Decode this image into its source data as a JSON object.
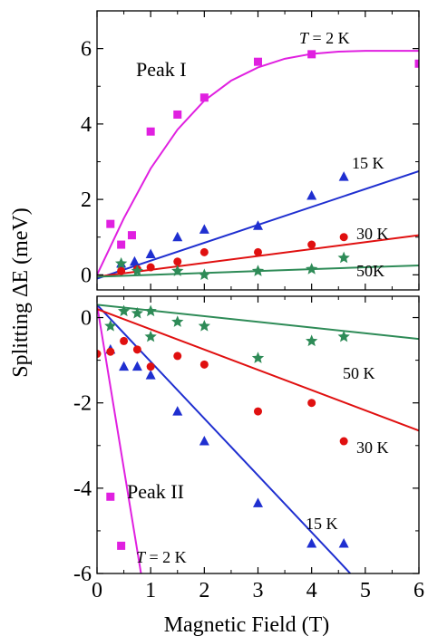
{
  "shared_xlabel": "Magnetic Field (T)",
  "shared_ylabel": "Splitting  ΔE (meV)",
  "chart_data": [
    {
      "type": "scatter",
      "panel": "top",
      "annotation": "Peak I",
      "xlim": [
        0,
        6
      ],
      "ylim": [
        -0.4,
        7
      ],
      "xticks": [
        0,
        1,
        2,
        3,
        4,
        5,
        6
      ],
      "yticks": [
        0,
        2,
        4,
        6
      ],
      "series": [
        {
          "label": "T = 2 K",
          "color": "#e020e0",
          "marker": "square",
          "points": [
            [
              0.25,
              1.35
            ],
            [
              0.45,
              0.8
            ],
            [
              0.65,
              1.05
            ],
            [
              1.0,
              3.8
            ],
            [
              1.5,
              4.25
            ],
            [
              2.0,
              4.7
            ],
            [
              3.0,
              5.65
            ],
            [
              4.0,
              5.85
            ],
            [
              6.0,
              5.6
            ]
          ],
          "fit": [
            [
              0,
              0
            ],
            [
              0.5,
              1.5
            ],
            [
              1,
              2.82
            ],
            [
              1.5,
              3.85
            ],
            [
              2,
              4.62
            ],
            [
              2.5,
              5.15
            ],
            [
              3,
              5.5
            ],
            [
              3.5,
              5.73
            ],
            [
              4,
              5.86
            ],
            [
              4.5,
              5.92
            ],
            [
              5,
              5.94
            ],
            [
              6,
              5.94
            ]
          ]
        },
        {
          "label": "15 K",
          "color": "#1f2fd0",
          "marker": "triangle",
          "points": [
            [
              0.45,
              0.3
            ],
            [
              0.7,
              0.35
            ],
            [
              1.0,
              0.55
            ],
            [
              1.5,
              1.0
            ],
            [
              2.0,
              1.2
            ],
            [
              3.0,
              1.3
            ],
            [
              4.0,
              2.1
            ],
            [
              4.6,
              2.6
            ]
          ],
          "fit": [
            [
              0,
              -0.1
            ],
            [
              6,
              2.75
            ]
          ]
        },
        {
          "label": "30 K",
          "color": "#e01010",
          "marker": "circle",
          "points": [
            [
              0.45,
              0.1
            ],
            [
              0.75,
              0.15
            ],
            [
              1.0,
              0.2
            ],
            [
              1.5,
              0.35
            ],
            [
              2.0,
              0.6
            ],
            [
              3.0,
              0.6
            ],
            [
              4.0,
              0.8
            ],
            [
              4.6,
              1.0
            ]
          ],
          "fit": [
            [
              0,
              -0.05
            ],
            [
              6,
              1.05
            ]
          ]
        },
        {
          "label": "50K",
          "color": "#2e8b57",
          "marker": "star",
          "points": [
            [
              0.45,
              0.3
            ],
            [
              0.75,
              0.1
            ],
            [
              1.5,
              0.1
            ],
            [
              2.0,
              0.0
            ],
            [
              3.0,
              0.1
            ],
            [
              4.0,
              0.15
            ],
            [
              4.6,
              0.45
            ]
          ],
          "fit": [
            [
              0,
              -0.05
            ],
            [
              6,
              0.25
            ]
          ]
        }
      ]
    },
    {
      "type": "scatter",
      "panel": "bottom",
      "annotation": "Peak II",
      "xlim": [
        0,
        6
      ],
      "ylim": [
        -6,
        0.5
      ],
      "xticks": [
        0,
        1,
        2,
        3,
        4,
        5,
        6
      ],
      "yticks": [
        0,
        -2,
        -4,
        -6
      ],
      "series": [
        {
          "label": "T = 2 K",
          "color": "#e020e0",
          "marker": "square",
          "points": [
            [
              0.25,
              -4.2
            ],
            [
              0.45,
              -5.35
            ]
          ],
          "fit": [
            [
              0,
              0.3
            ],
            [
              0.82,
              -6.0
            ]
          ]
        },
        {
          "label": "15 K",
          "color": "#1f2fd0",
          "marker": "triangle",
          "points": [
            [
              0.25,
              -0.75
            ],
            [
              0.5,
              -1.15
            ],
            [
              0.75,
              -1.15
            ],
            [
              1.0,
              -1.35
            ],
            [
              1.5,
              -2.2
            ],
            [
              2.0,
              -2.9
            ],
            [
              3.0,
              -4.35
            ],
            [
              4.0,
              -5.3
            ],
            [
              4.6,
              -5.3
            ]
          ],
          "fit": [
            [
              0,
              0.3
            ],
            [
              4.5,
              -5.7
            ],
            [
              4.72,
              -6.0
            ]
          ]
        },
        {
          "label": "30 K",
          "color": "#e01010",
          "marker": "circle",
          "points": [
            [
              0.0,
              -0.85
            ],
            [
              0.25,
              -0.8
            ],
            [
              0.5,
              -0.55
            ],
            [
              0.75,
              -0.75
            ],
            [
              1.0,
              -1.15
            ],
            [
              1.5,
              -0.9
            ],
            [
              2.0,
              -1.1
            ],
            [
              3.0,
              -2.2
            ],
            [
              4.0,
              -2.0
            ],
            [
              4.6,
              -2.9
            ]
          ],
          "fit": [
            [
              0,
              0.2
            ],
            [
              6,
              -2.65
            ]
          ]
        },
        {
          "label": "50 K",
          "color": "#2e8b57",
          "marker": "star",
          "points": [
            [
              0.25,
              -0.2
            ],
            [
              0.5,
              0.15
            ],
            [
              0.75,
              0.1
            ],
            [
              1.0,
              0.15
            ],
            [
              1.0,
              -0.45
            ],
            [
              1.5,
              -0.1
            ],
            [
              2.0,
              -0.2
            ],
            [
              3.0,
              -0.95
            ],
            [
              4.0,
              -0.55
            ],
            [
              4.6,
              -0.45
            ]
          ],
          "fit": [
            [
              0,
              0.3
            ],
            [
              6,
              -0.5
            ]
          ]
        }
      ]
    }
  ]
}
